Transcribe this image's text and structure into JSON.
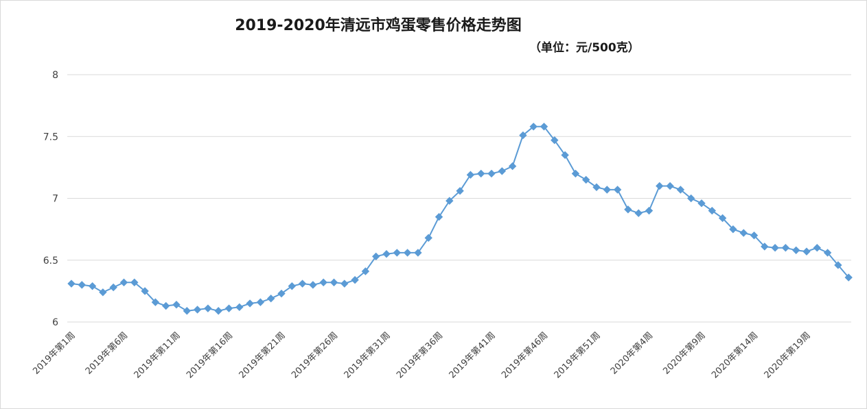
{
  "chart_data": {
    "type": "line",
    "title": "2019-2020年清远市鸡蛋零售价格走势图",
    "subtitle": "（单位：元/500克）",
    "ylim": [
      6,
      8
    ],
    "yticks": [
      6,
      6.5,
      7,
      7.5,
      8
    ],
    "grid": true,
    "color": "#5b9bd5",
    "marker": "diamond",
    "x_tick_labels": [
      "2019年第1周",
      "2019年第6周",
      "2019年第11周",
      "2019年第16周",
      "2019年第21周",
      "2019年第26周",
      "2019年第31周",
      "2019年第36周",
      "2019年第41周",
      "2019年第46周",
      "2019年第51周",
      "2020年第4周",
      "2020年第9周",
      "2020年第14周",
      "2020年第19周"
    ],
    "series": [
      {
        "values": [
          6.31,
          6.3,
          6.29,
          6.24,
          6.28,
          6.32,
          6.32,
          6.25,
          6.16,
          6.13,
          6.14,
          6.09,
          6.1,
          6.11,
          6.09,
          6.11,
          6.12,
          6.15,
          6.16,
          6.19,
          6.23,
          6.29,
          6.31,
          6.3,
          6.32,
          6.32,
          6.31,
          6.34,
          6.41,
          6.53,
          6.55,
          6.56,
          6.56,
          6.56,
          6.68,
          6.85,
          6.98,
          7.06,
          7.19,
          7.2,
          7.2,
          7.22,
          7.26,
          7.51,
          7.58,
          7.58,
          7.47,
          7.35,
          7.2,
          7.15,
          7.09,
          7.07,
          7.07,
          6.91,
          6.88,
          6.9,
          7.1,
          7.1,
          7.07,
          7.0,
          6.96,
          6.9,
          6.84,
          6.75,
          6.72,
          6.7,
          6.61,
          6.6,
          6.6,
          6.58,
          6.57,
          6.6,
          6.56,
          6.46,
          6.36
        ]
      }
    ]
  }
}
